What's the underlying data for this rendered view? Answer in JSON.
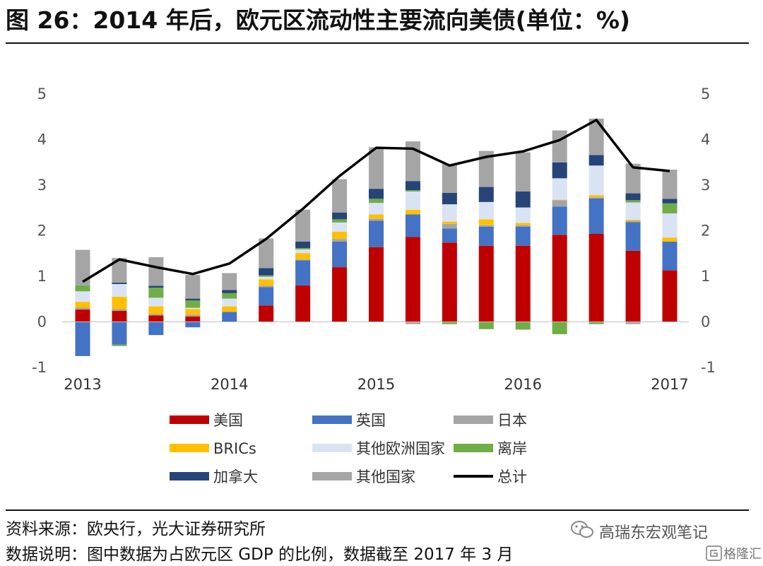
{
  "title": "图 26：2014 年后，欧元区流动性主要流向美债(单位：%)",
  "footer": {
    "source": "资料来源：欧央行，光大证券研究所",
    "note": "数据说明：图中数据为占欧元区 GDP 的比例，数据截至 2017 年 3 月"
  },
  "watermark": {
    "wechat": "高瑞东宏观笔记",
    "site": "格隆汇"
  },
  "colors": {
    "us": "#C00000",
    "uk": "#4472C4",
    "japan": "#A5A5A5",
    "brics": "#FFC000",
    "other_europe": "#DAE3F3",
    "offshore": "#70AD47",
    "canada": "#264478",
    "other": "#A5A5A5",
    "total": "#000000"
  },
  "chart_data": {
    "type": "bar",
    "stacked": true,
    "x_tick_labels": [
      "2013",
      "2014",
      "2015",
      "2016",
      "2017"
    ],
    "ylim": [
      -1,
      5
    ],
    "yticks": [
      -1,
      0,
      1,
      2,
      3,
      4,
      5
    ],
    "secondary_y_axis": true,
    "grid": false,
    "legend_position": "bottom",
    "periods": 17,
    "series": [
      {
        "name": "美国",
        "key": "us",
        "values": [
          0.27,
          0.24,
          0.14,
          0.12,
          0,
          0.36,
          0.8,
          1.2,
          1.64,
          1.86,
          1.74,
          1.67,
          1.67,
          1.91,
          1.93,
          1.56,
          1.13
        ]
      },
      {
        "name": "英国",
        "key": "uk",
        "values": [
          -0.75,
          -0.5,
          -0.29,
          -0.12,
          0.22,
          0.4,
          0.55,
          0.56,
          0.58,
          0.5,
          0.31,
          0.42,
          0.42,
          0.62,
          0.78,
          0.63,
          0.63
        ]
      },
      {
        "name": "日本",
        "key": "japan",
        "values": [
          0.04,
          0.04,
          0.03,
          0.04,
          0,
          0.03,
          0.02,
          0.06,
          0.04,
          0,
          0.1,
          0.03,
          0.03,
          0.14,
          0.02,
          0.02,
          0
        ]
      },
      {
        "name": "BRICs",
        "key": "brics",
        "values": [
          0.13,
          0.27,
          0.17,
          0.12,
          0.12,
          0.14,
          0.14,
          0.16,
          0.1,
          0.1,
          0.05,
          0.13,
          0.05,
          0.01,
          0.05,
          0.03,
          0.09
        ]
      },
      {
        "name": "其他欧洲国家",
        "key": "other_europe",
        "values": [
          0.23,
          0.28,
          0.19,
          0.03,
          0.17,
          0.06,
          0.08,
          0.2,
          0.25,
          0.4,
          0.38,
          0.38,
          0.34,
          0.47,
          0.65,
          0.38,
          0.53
        ]
      },
      {
        "name": "离岸",
        "key": "offshore",
        "values": [
          0.13,
          -0.03,
          0.22,
          0.16,
          0.12,
          0.03,
          0.03,
          0.07,
          0.09,
          0.03,
          -0.05,
          -0.16,
          -0.17,
          -0.27,
          -0.05,
          0.05,
          0.22
        ]
      },
      {
        "name": "加拿大",
        "key": "canada",
        "values": [
          0,
          0.03,
          0.04,
          0.04,
          0.07,
          0.16,
          0.14,
          0.15,
          0.22,
          0.2,
          0.25,
          0.33,
          0.35,
          0.35,
          0.23,
          0.15,
          0.1
        ]
      },
      {
        "name": "其他国家",
        "key": "other",
        "values": [
          0.78,
          0.54,
          0.63,
          0.52,
          0.37,
          0.65,
          0.7,
          0.73,
          0.91,
          0.87,
          0.63,
          0.79,
          0.86,
          0.7,
          0.8,
          0.65,
          0.64
        ]
      }
    ],
    "negative_other": [
      0,
      0,
      0,
      0,
      0,
      0,
      0,
      0,
      0,
      -0.05,
      0,
      0,
      0,
      0,
      0,
      -0.05,
      0
    ],
    "line": {
      "name": "总计",
      "key": "total",
      "values": [
        0.88,
        1.37,
        1.2,
        1.05,
        1.28,
        1.82,
        2.48,
        3.2,
        3.82,
        3.8,
        3.43,
        3.62,
        3.74,
        3.99,
        4.43,
        3.39,
        3.31
      ]
    },
    "legend_layout": [
      [
        "us",
        "uk",
        "japan"
      ],
      [
        "brics",
        "other_europe",
        "offshore"
      ],
      [
        "canada",
        "other",
        "total"
      ]
    ]
  }
}
